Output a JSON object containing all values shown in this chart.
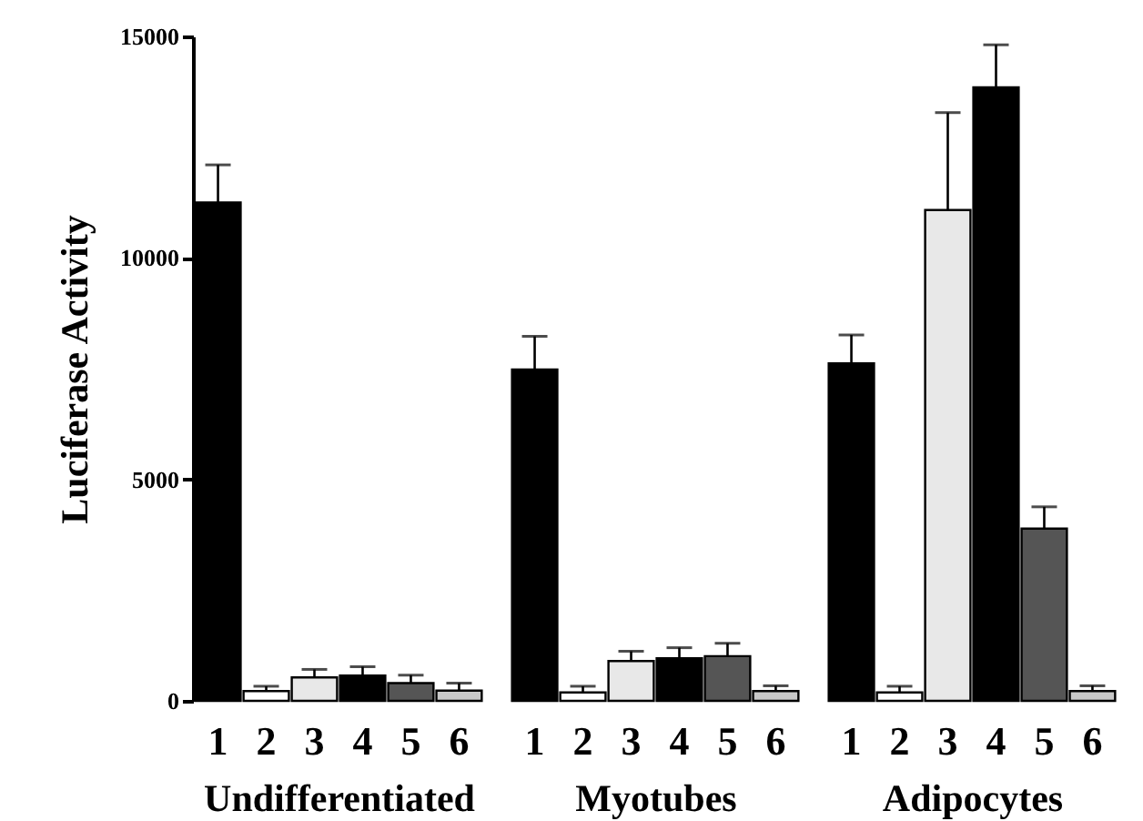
{
  "chart_data": [
    {
      "type": "bar",
      "xlabel": "Undifferentiated",
      "ylabel": "Luciferase Activity",
      "categories": [
        "1",
        "2",
        "3",
        "4",
        "5",
        "6"
      ],
      "values": [
        11250,
        220,
        530,
        570,
        400,
        230
      ],
      "colors": [
        "#000000",
        "#ffffff",
        "#e8e8e8",
        "#000000",
        "#555555",
        "#c8c8c8"
      ],
      "errors": [
        [
          11250,
          12100
        ],
        [
          220,
          330
        ],
        [
          530,
          710
        ],
        [
          570,
          770
        ],
        [
          400,
          580
        ],
        [
          230,
          400
        ]
      ],
      "ylim": [
        0,
        15000
      ],
      "yticks": [
        0,
        5000,
        10000,
        15000
      ],
      "grid": false
    },
    {
      "type": "bar",
      "xlabel": "Myotubes",
      "categories": [
        "1",
        "2",
        "3",
        "4",
        "5",
        "6"
      ],
      "values": [
        7480,
        190,
        900,
        960,
        1010,
        220
      ],
      "colors": [
        "#000000",
        "#ffffff",
        "#e8e8e8",
        "#000000",
        "#555555",
        "#c8c8c8"
      ],
      "errors": [
        [
          7480,
          8230
        ],
        [
          190,
          330
        ],
        [
          900,
          1120
        ],
        [
          960,
          1200
        ],
        [
          1010,
          1300
        ],
        [
          220,
          340
        ]
      ],
      "ylim": [
        0,
        15000
      ],
      "yticks": [
        0,
        5000,
        10000,
        15000
      ],
      "tick_labels": "x",
      "grid": false
    },
    {
      "type": "bar",
      "xlabel": "Adipocytes",
      "categories": [
        "1",
        "2",
        "3",
        "4",
        "5",
        "6"
      ],
      "values": [
        7620,
        190,
        11080,
        13850,
        3890,
        220
      ],
      "colors": [
        "#000000",
        "#ffffff",
        "#e8e8e8",
        "#000000",
        "#555555",
        "#c8c8c8"
      ],
      "errors": [
        [
          7620,
          8260
        ],
        [
          190,
          330
        ],
        [
          11080,
          13280
        ],
        [
          13850,
          14810
        ],
        [
          3890,
          4380
        ],
        [
          220,
          340
        ]
      ],
      "ylim": [
        0,
        15000
      ],
      "yticks": [
        0,
        5000,
        10000,
        15000
      ],
      "tick_labels": "x",
      "grid": false
    }
  ]
}
